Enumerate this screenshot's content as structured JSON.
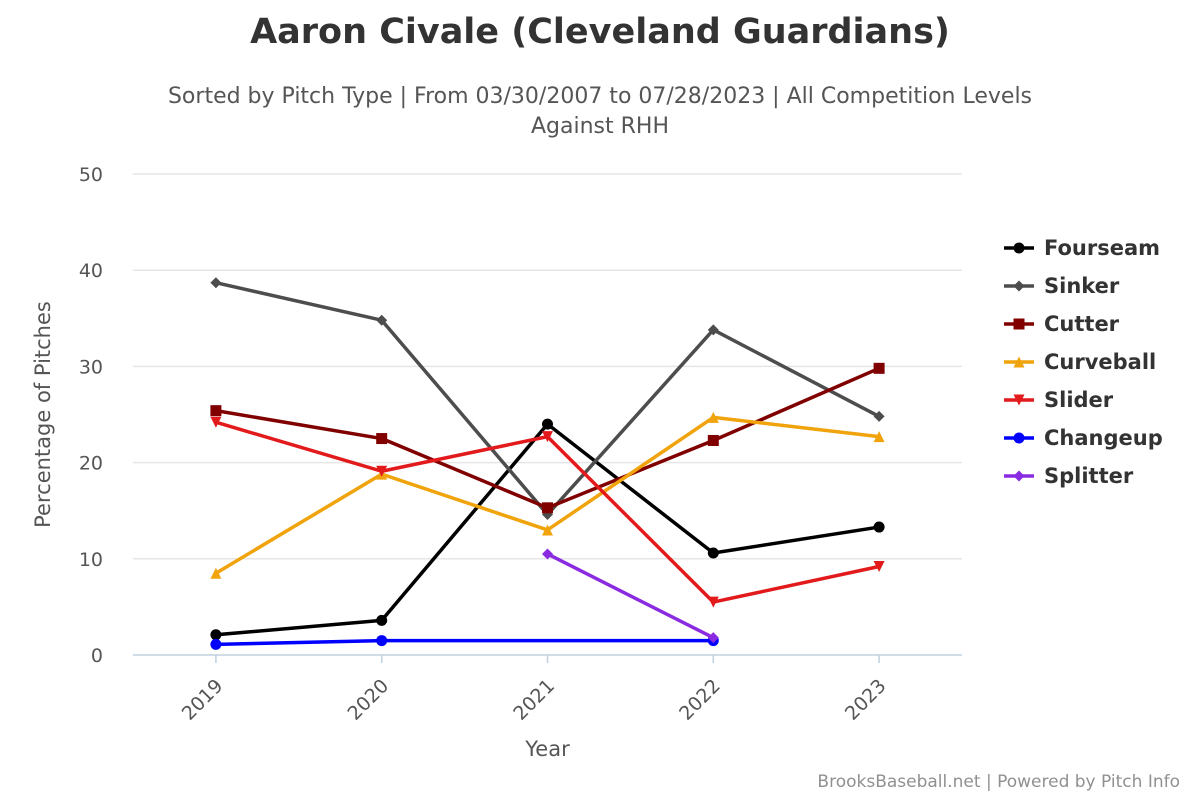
{
  "chart_data": {
    "type": "line",
    "title": "Aaron Civale (Cleveland Guardians)",
    "subtitle_line1": "Sorted by Pitch Type | From 03/30/2007 to 07/28/2023 | All Competition Levels",
    "subtitle_line2": "Against RHH",
    "xlabel": "Year",
    "ylabel": "Percentage of Pitches",
    "categories": [
      "2019",
      "2020",
      "2021",
      "2022",
      "2023"
    ],
    "y_ticks": [
      "0",
      "10",
      "20",
      "30",
      "40",
      "50"
    ],
    "ylim": [
      0,
      50
    ],
    "grid": true,
    "legend_position": "right",
    "series": [
      {
        "name": "Fourseam",
        "color": "#000000",
        "marker": "circle",
        "values": [
          2.1,
          3.6,
          24.0,
          10.6,
          13.3
        ]
      },
      {
        "name": "Sinker",
        "color": "#4d4d4d",
        "marker": "diamond",
        "values": [
          38.7,
          34.8,
          14.6,
          33.8,
          24.8
        ]
      },
      {
        "name": "Cutter",
        "color": "#800000",
        "marker": "square",
        "values": [
          25.4,
          22.5,
          15.3,
          22.3,
          29.8
        ]
      },
      {
        "name": "Curveball",
        "color": "#f0a30a",
        "marker": "triangle",
        "values": [
          8.5,
          18.8,
          13.0,
          24.7,
          22.7
        ]
      },
      {
        "name": "Slider",
        "color": "#e31a1c",
        "marker": "triangle-down",
        "values": [
          24.2,
          19.1,
          22.7,
          5.5,
          9.2
        ]
      },
      {
        "name": "Changeup",
        "color": "#0000ff",
        "marker": "circle",
        "values": [
          1.1,
          1.5,
          null,
          1.5,
          null
        ]
      },
      {
        "name": "Splitter",
        "color": "#8a2be2",
        "marker": "diamond",
        "values": [
          null,
          null,
          10.5,
          1.8,
          null
        ]
      }
    ]
  },
  "credits": "BrooksBaseball.net | Powered by Pitch Info"
}
